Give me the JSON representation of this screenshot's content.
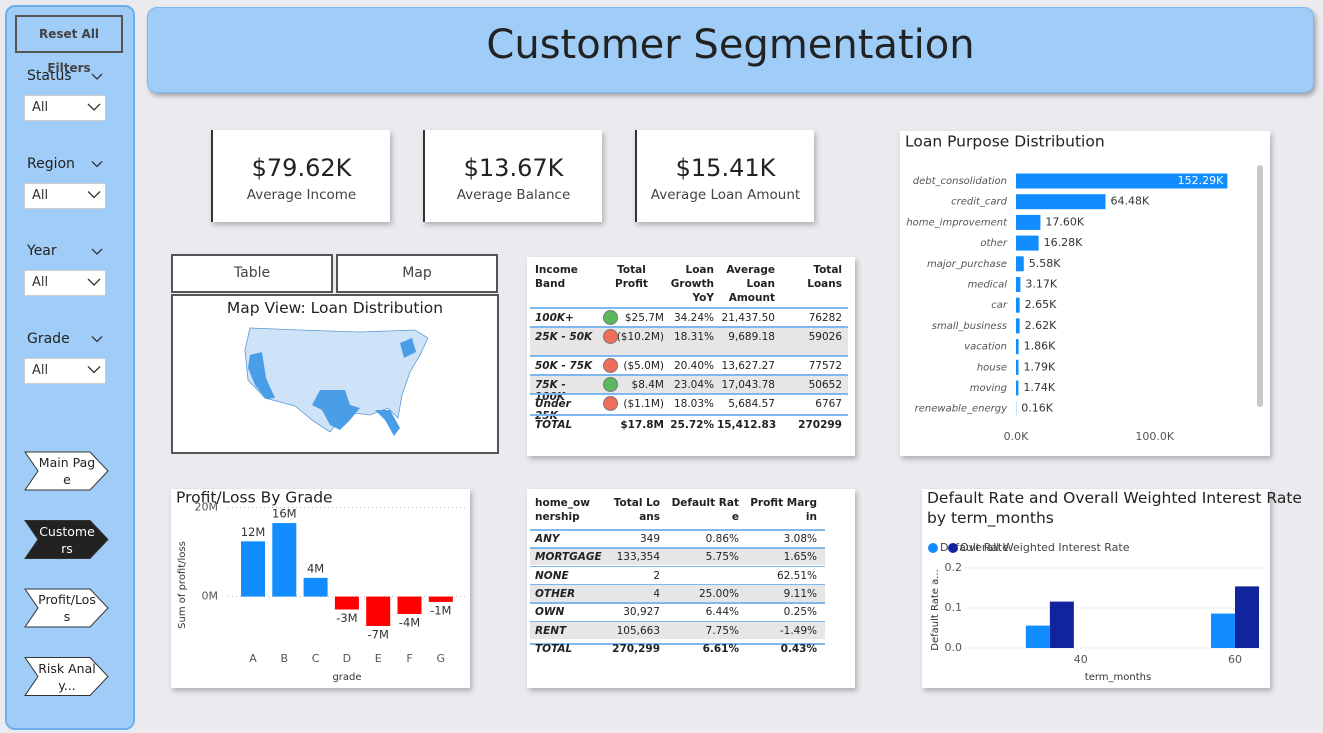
{
  "sidebar": {
    "reset": "Reset All Filters",
    "filters": [
      {
        "label": "Status",
        "value": "All"
      },
      {
        "label": "Region",
        "value": "All"
      },
      {
        "label": "Year",
        "value": "All"
      },
      {
        "label": "Grade",
        "value": "All"
      }
    ],
    "nav": [
      "Main Page",
      "Customers",
      "Profit/Loss",
      "Risk Analy..."
    ]
  },
  "header": {
    "title": "Customer Segmentation"
  },
  "kpis": [
    {
      "value": "$79.62K",
      "label": "Average Income"
    },
    {
      "value": "$13.67K",
      "label": "Average Balance"
    },
    {
      "value": "$15.41K",
      "label": "Average Loan Amount"
    }
  ],
  "tabs": [
    "Table",
    "Map"
  ],
  "map": {
    "title": "Map View: Loan Distribution"
  },
  "table1": {
    "columns": [
      "Income Band",
      "Total Profit",
      "Loan Growth YoY",
      "Average Loan Amount",
      "Total Loans"
    ],
    "rows": [
      [
        "100K+",
        "$25.7M",
        "34.24%",
        "21,437.50",
        "76282"
      ],
      [
        "25K - 50K",
        "($10.2M)",
        "18.31%",
        "9,689.18",
        "59026"
      ],
      [
        "50K - 75K",
        "($5.0M)",
        "20.40%",
        "13,627.27",
        "77572"
      ],
      [
        "75K - 100K",
        "$8.4M",
        "23.04%",
        "17,043.78",
        "50652"
      ],
      [
        "Under 25K",
        "($1.1M)",
        "18.03%",
        "5,684.57",
        "6767"
      ]
    ],
    "indicators": [
      "#5cb85c",
      "#f06c5b",
      "#f06c5b",
      "#5cb85c",
      "#f06c5b"
    ],
    "total": [
      "TOTAL",
      "$17.8M",
      "25.72%",
      "15,412.83",
      "270299"
    ]
  },
  "table2": {
    "columns": [
      "home_ownership",
      "Total Loans",
      "Default Rate",
      "Profit Margin"
    ],
    "rows": [
      [
        "ANY",
        "349",
        "0.86%",
        "3.08%"
      ],
      [
        "MORTGAGE",
        "133,354",
        "5.75%",
        "1.65%"
      ],
      [
        "NONE",
        "2",
        null,
        "62.51%"
      ],
      [
        "OTHER",
        "4",
        "25.00%",
        "9.11%"
      ],
      [
        "OWN",
        "30,927",
        "6.44%",
        "0.25%"
      ],
      [
        "RENT",
        "105,663",
        "7.75%",
        "-1.49%"
      ]
    ],
    "total": [
      "TOTAL",
      "270,299",
      "6.61%",
      "0.43%"
    ]
  },
  "chart_data": [
    {
      "type": "hbar",
      "title": "Loan Purpose Distribution",
      "categories": [
        "debt_consolidation",
        "credit_card",
        "home_improvement",
        "other",
        "major_purchase",
        "medical",
        "car",
        "small_business",
        "vacation",
        "house",
        "moving",
        "renewable_energy"
      ],
      "values": [
        152290,
        64480,
        17600,
        16280,
        5580,
        3170,
        2650,
        2620,
        1860,
        1790,
        1740,
        160
      ],
      "value_labels": [
        "152.29K",
        "64.48K",
        "17.60K",
        "16.28K",
        "5.58K",
        "3.17K",
        "2.65K",
        "2.62K",
        "1.86K",
        "1.79K",
        "1.74K",
        "0.16K"
      ],
      "color": "#118dff",
      "xlim": [
        0,
        165000
      ],
      "xticks": [
        {
          "value": 0,
          "label": "0.0K"
        },
        {
          "value": 100000,
          "label": "100.0K"
        }
      ]
    },
    {
      "type": "bar",
      "title": "Profit/Loss By Grade",
      "x_label": "grade",
      "y_label": "Sum of profit/loss",
      "categories": [
        "A",
        "B",
        "C",
        "D",
        "E",
        "F",
        "G"
      ],
      "values": [
        12.4,
        16.5,
        4.2,
        -2.9,
        -6.6,
        -3.9,
        -1.2
      ],
      "value_labels": [
        "12M",
        "16M",
        "4M",
        "-3M",
        "-7M",
        "-4M",
        "-1M"
      ],
      "color": "#118dff",
      "negative_color": "#ff0000",
      "ylim": [
        -7.5,
        21
      ],
      "yticks": [
        {
          "value": 0,
          "label": "0M"
        },
        {
          "value": 20,
          "label": "20M"
        }
      ],
      "grid": true
    },
    {
      "type": "grouped_bar",
      "title": "Default Rate and Overall Weighted Interest Rate by term_months",
      "x_label": "term_months",
      "y_label": "Default Rate a...",
      "x": [
        36,
        60
      ],
      "series": [
        {
          "name": "Default Rate",
          "color": "#118dff",
          "values": [
            0.056,
            0.086
          ]
        },
        {
          "name": "Overall Weighted Interest Rate",
          "color": "#12239e",
          "values": [
            0.116,
            0.154
          ]
        }
      ],
      "xlim": [
        25,
        63.5
      ],
      "xticks": [
        40,
        60
      ],
      "ylim": [
        0,
        0.22
      ],
      "yticks": [
        {
          "value": 0,
          "label": "0.0"
        },
        0.1,
        0.2
      ],
      "grid": true
    }
  ]
}
